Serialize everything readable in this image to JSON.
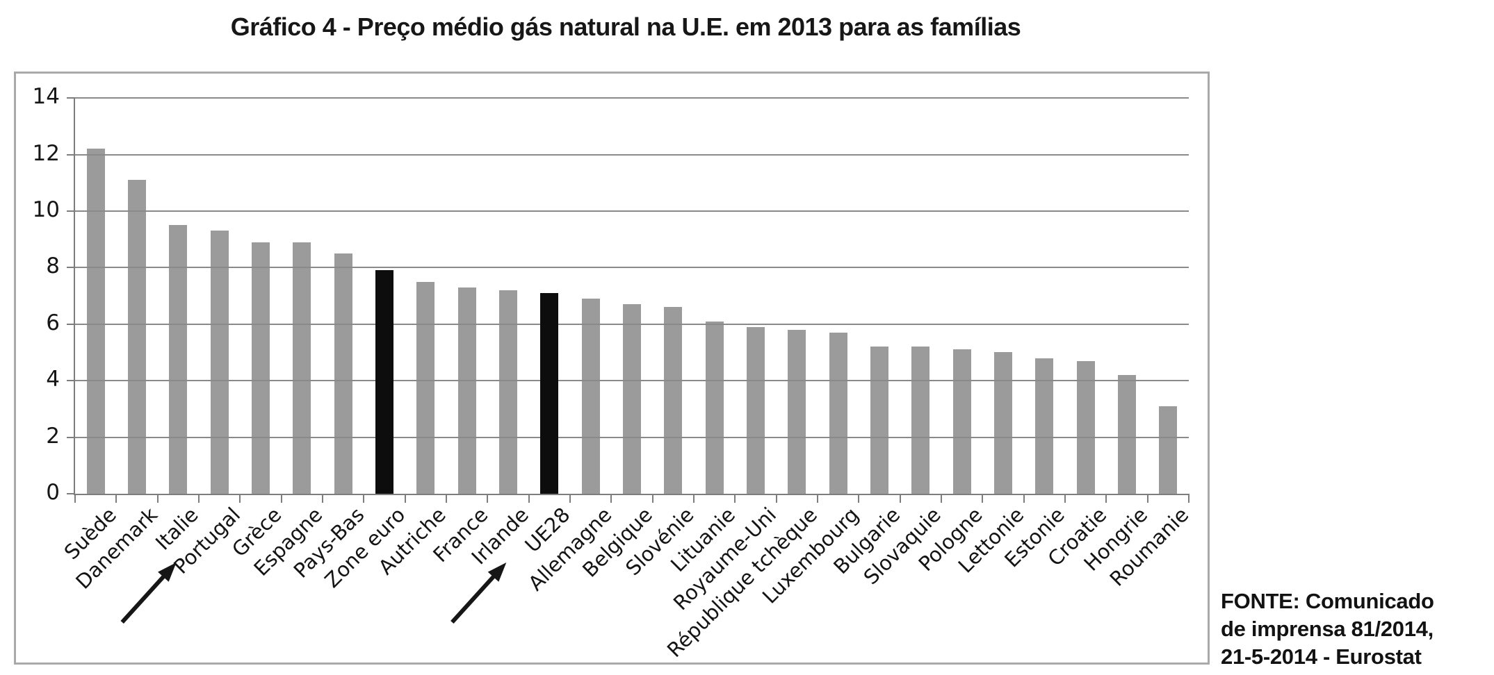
{
  "page": {
    "title": "Gráfico 4 - Preço médio gás natural na U.E. em 2013 para as famílias"
  },
  "source": {
    "line1": "FONTE: Comunicado",
    "line2": "de imprensa 81/2014,",
    "line3": "21-5-2014 - Eurostat"
  },
  "chart_data": {
    "type": "bar",
    "title": "Gráfico 4 - Preço médio gás natural na U.E. em 2013 para as famílias",
    "categories": [
      "Suède",
      "Danemark",
      "Italie",
      "Portugal",
      "Grèce",
      "Espagne",
      "Pays-Bas",
      "Zone euro",
      "Autriche",
      "France",
      "Irlande",
      "UE28",
      "Allemagne",
      "Belgique",
      "Slovénie",
      "Lituanie",
      "Royaume-Uni",
      "République tchèque",
      "Luxembourg",
      "Bulgarie",
      "Slovaquie",
      "Pologne",
      "Lettonie",
      "Estonie",
      "Croatie",
      "Hongrie",
      "Roumanie"
    ],
    "values": [
      12.2,
      11.1,
      9.5,
      9.3,
      8.9,
      8.9,
      8.5,
      7.9,
      7.5,
      7.3,
      7.2,
      7.1,
      6.9,
      6.7,
      6.6,
      6.1,
      5.9,
      5.8,
      5.7,
      5.2,
      5.2,
      5.1,
      5.0,
      4.8,
      4.7,
      4.2,
      3.1
    ],
    "xlabel": "",
    "ylabel": "",
    "ylim": [
      0,
      14
    ],
    "ytick_step": 2,
    "ytick_labels": [
      "0",
      "2",
      "4",
      "6",
      "8",
      "10",
      "12",
      "14"
    ],
    "grid": true,
    "legend": "none",
    "bar_color": "#9b9b9b",
    "highlight_color": "#0d0d0d",
    "gridline_color": "#8a8a8a",
    "axis_color": "#7d7d7d",
    "highlighted_categories": [
      "Zone euro",
      "UE28"
    ],
    "arrow_annotations_point_to": [
      "Portugal",
      "UE28"
    ],
    "arrow_color": "#161616"
  }
}
